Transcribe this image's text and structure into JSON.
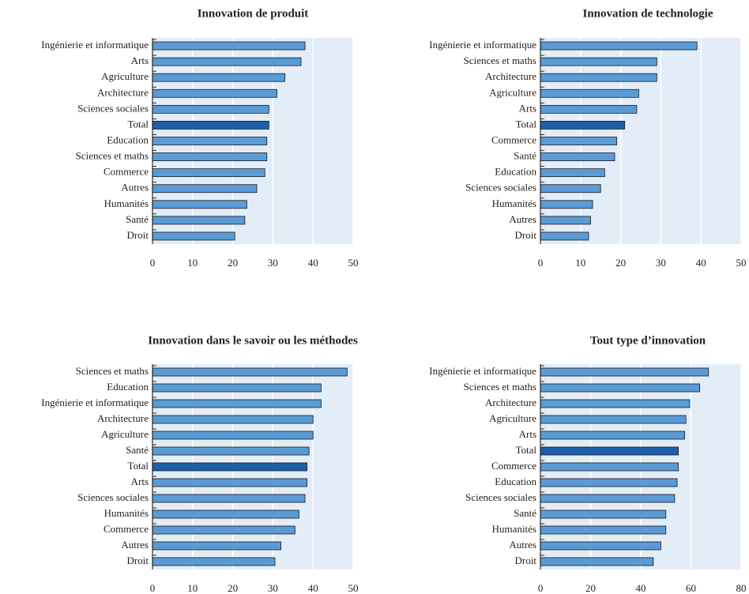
{
  "chart_data": [
    {
      "type": "bar",
      "orientation": "horizontal",
      "title": "Innovation de produit",
      "categories": [
        "Ingénierie et informatique",
        "Arts",
        "Agriculture",
        "Architecture",
        "Sciences sociales",
        "Total",
        "Education",
        "Sciences et maths",
        "Commerce",
        "Autres",
        "Humanités",
        "Santé",
        "Droit"
      ],
      "values": [
        38,
        37,
        33,
        31,
        29,
        29,
        28.5,
        28.5,
        28,
        26,
        23.5,
        23,
        20.5
      ],
      "colors": [
        "#5b9bd5",
        "#5b9bd5",
        "#5b9bd5",
        "#5b9bd5",
        "#5b9bd5",
        "#1f5fa8",
        "#5b9bd5",
        "#5b9bd5",
        "#5b9bd5",
        "#5b9bd5",
        "#5b9bd5",
        "#5b9bd5",
        "#5b9bd5"
      ],
      "xlim": [
        0,
        50
      ],
      "xticks": [
        0,
        10,
        20,
        30,
        40,
        50
      ],
      "grid": true
    },
    {
      "type": "bar",
      "orientation": "horizontal",
      "title": "Innovation de technologie",
      "categories": [
        "Ingénierie et informatique",
        "Sciences et maths",
        "Architecture",
        "Agriculture",
        "Arts",
        "Total",
        "Commerce",
        "Santé",
        "Education",
        "Sciences sociales",
        "Humanités",
        "Autres",
        "Droit"
      ],
      "values": [
        39,
        29,
        29,
        24.5,
        24,
        21,
        19,
        18.5,
        16,
        15,
        13,
        12.5,
        12
      ],
      "colors": [
        "#5b9bd5",
        "#5b9bd5",
        "#5b9bd5",
        "#5b9bd5",
        "#5b9bd5",
        "#1f5fa8",
        "#5b9bd5",
        "#5b9bd5",
        "#5b9bd5",
        "#5b9bd5",
        "#5b9bd5",
        "#5b9bd5",
        "#5b9bd5"
      ],
      "xlim": [
        0,
        50
      ],
      "xticks": [
        0,
        10,
        20,
        30,
        40,
        50
      ],
      "grid": true
    },
    {
      "type": "bar",
      "orientation": "horizontal",
      "title": "Innovation dans le savoir ou les méthodes",
      "categories": [
        "Sciences et maths",
        "Education",
        "Ingénierie et informatique",
        "Architecture",
        "Agriculture",
        "Santé",
        "Total",
        "Arts",
        "Sciences sociales",
        "Humanités",
        "Commerce",
        "Autres",
        "Droit"
      ],
      "values": [
        48.5,
        42,
        42,
        40,
        40,
        39,
        38.5,
        38.5,
        38,
        36.5,
        35.5,
        32,
        30.5
      ],
      "colors": [
        "#5b9bd5",
        "#5b9bd5",
        "#5b9bd5",
        "#5b9bd5",
        "#5b9bd5",
        "#5b9bd5",
        "#1f5fa8",
        "#5b9bd5",
        "#5b9bd5",
        "#5b9bd5",
        "#5b9bd5",
        "#5b9bd5",
        "#5b9bd5"
      ],
      "xlim": [
        0,
        50
      ],
      "xticks": [
        0,
        10,
        20,
        30,
        40,
        50
      ],
      "grid": true
    },
    {
      "type": "bar",
      "orientation": "horizontal",
      "title": "Tout type d’innovation",
      "categories": [
        "Ingénierie et informatique",
        "Sciences et maths",
        "Architecture",
        "Agriculture",
        "Arts",
        "Total",
        "Commerce",
        "Education",
        "Sciences sociales",
        "Santé",
        "Humanités",
        "Autres",
        "Droit"
      ],
      "values": [
        67,
        63.5,
        59.5,
        58,
        57.5,
        55,
        55,
        54.5,
        53.5,
        50,
        50,
        48,
        45
      ],
      "colors": [
        "#5b9bd5",
        "#5b9bd5",
        "#5b9bd5",
        "#5b9bd5",
        "#5b9bd5",
        "#1f5fa8",
        "#5b9bd5",
        "#5b9bd5",
        "#5b9bd5",
        "#5b9bd5",
        "#5b9bd5",
        "#5b9bd5",
        "#5b9bd5"
      ],
      "xlim": [
        0,
        80
      ],
      "xticks": [
        0,
        20,
        40,
        60,
        80
      ],
      "grid": true
    }
  ]
}
